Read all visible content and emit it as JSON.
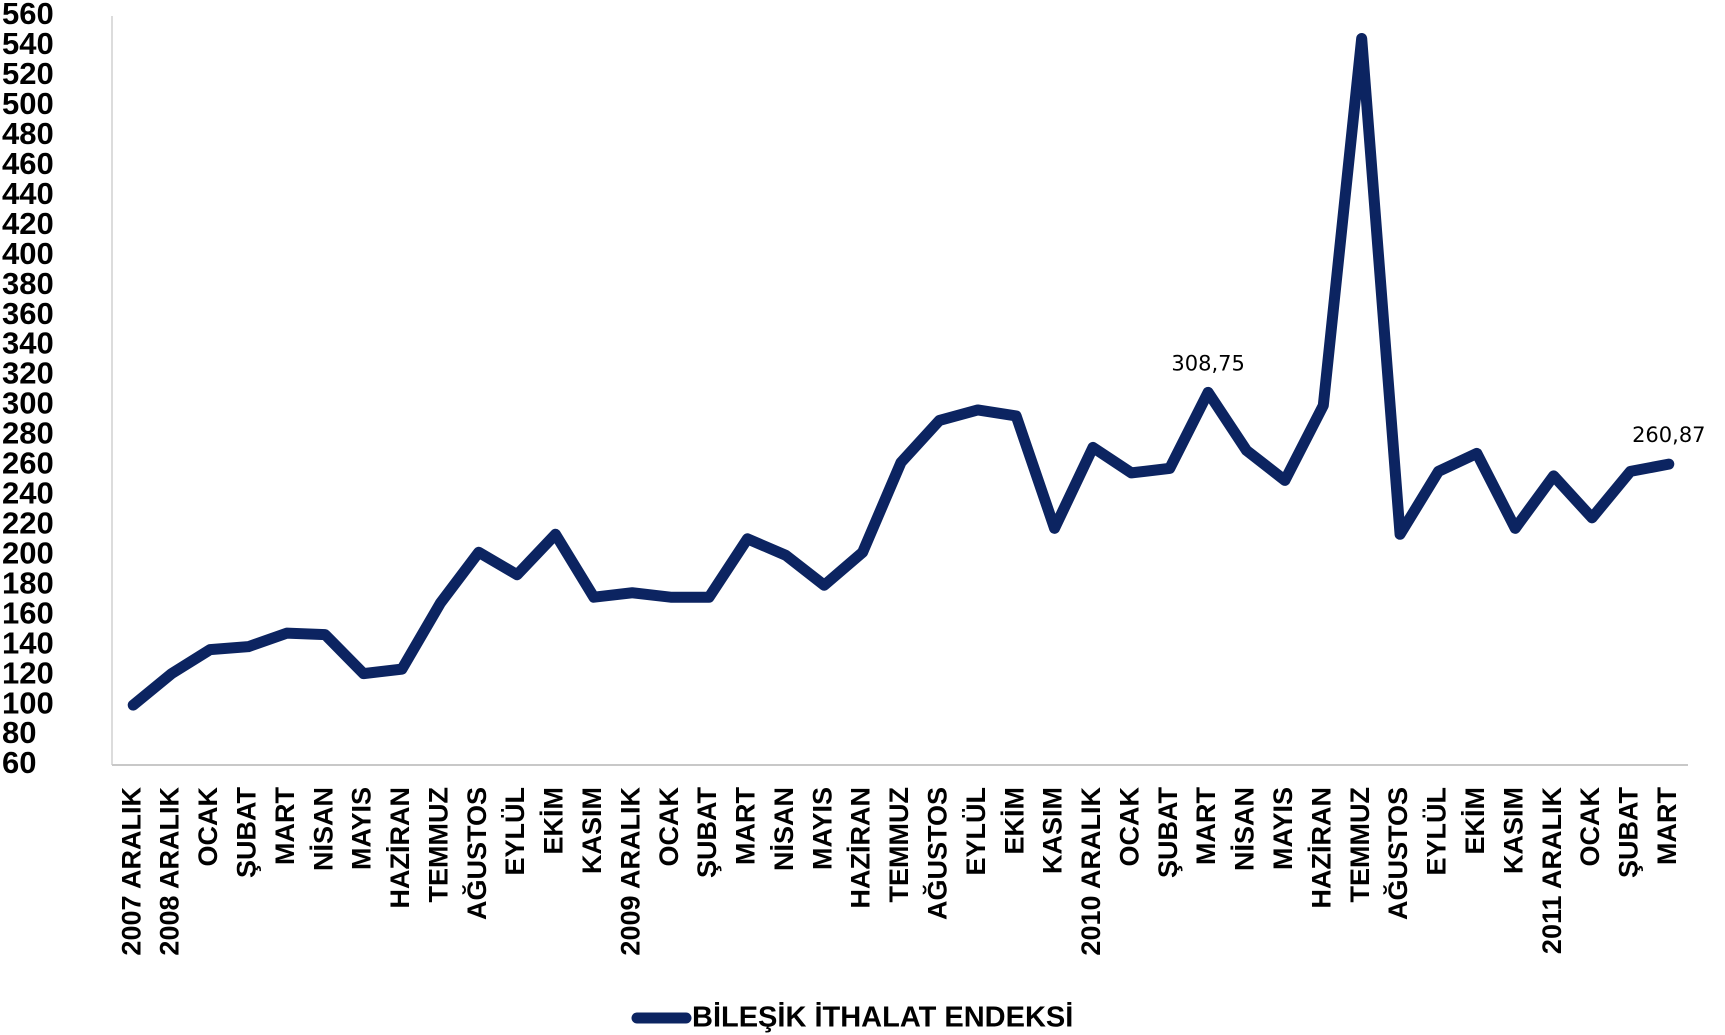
{
  "chart_data": {
    "type": "line",
    "categories": [
      "2007 ARALIK",
      "2008 ARALIK",
      "OCAK",
      "ŞUBAT",
      "MART",
      "NİSAN",
      "MAYIS",
      "HAZİRAN",
      "TEMMUZ",
      "AĞUSTOS",
      "EYLÜL",
      "EKİM",
      "KASIM",
      "2009 ARALIK",
      "OCAK",
      "ŞUBAT",
      "MART",
      "NİSAN",
      "MAYIS",
      "HAZİRAN",
      "TEMMUZ",
      "AĞUSTOS",
      "EYLÜL",
      "EKİM",
      "KASIM",
      "2010 ARALIK",
      "OCAK",
      "ŞUBAT",
      "MART",
      "NİSAN",
      "MAYIS",
      "HAZİRAN",
      "TEMMUZ",
      "AĞUSTOS",
      "EYLÜL",
      "EKİM",
      "KASIM",
      "2011 ARALIK",
      "OCAK",
      "ŞUBAT",
      "MART"
    ],
    "series": [
      {
        "name": "BİLEŞİK İTHALAT ENDEKSİ",
        "color": "#0c2461",
        "values": [
          100,
          121,
          137,
          139,
          148,
          147,
          121,
          124,
          168,
          202,
          187,
          214,
          172,
          175,
          172,
          172,
          211,
          200,
          180,
          202,
          262,
          290,
          297,
          293,
          218,
          272,
          255,
          258,
          308.75,
          270,
          250,
          300,
          545,
          214,
          256,
          268,
          218,
          253,
          225,
          256,
          260.87
        ],
        "value_labels": [
          null,
          null,
          null,
          null,
          null,
          null,
          null,
          null,
          null,
          null,
          null,
          null,
          null,
          null,
          null,
          null,
          null,
          null,
          null,
          null,
          null,
          null,
          null,
          null,
          null,
          null,
          null,
          null,
          "308,75",
          null,
          null,
          null,
          null,
          null,
          null,
          null,
          null,
          null,
          null,
          null,
          "260,87"
        ]
      }
    ],
    "ylim": [
      60,
      560
    ],
    "yticks": [
      60,
      80,
      100,
      120,
      140,
      160,
      180,
      200,
      220,
      240,
      260,
      280,
      300,
      320,
      340,
      360,
      380,
      400,
      420,
      440,
      460,
      480,
      500,
      520,
      540,
      560
    ],
    "grid": false,
    "legend": "bottom"
  }
}
